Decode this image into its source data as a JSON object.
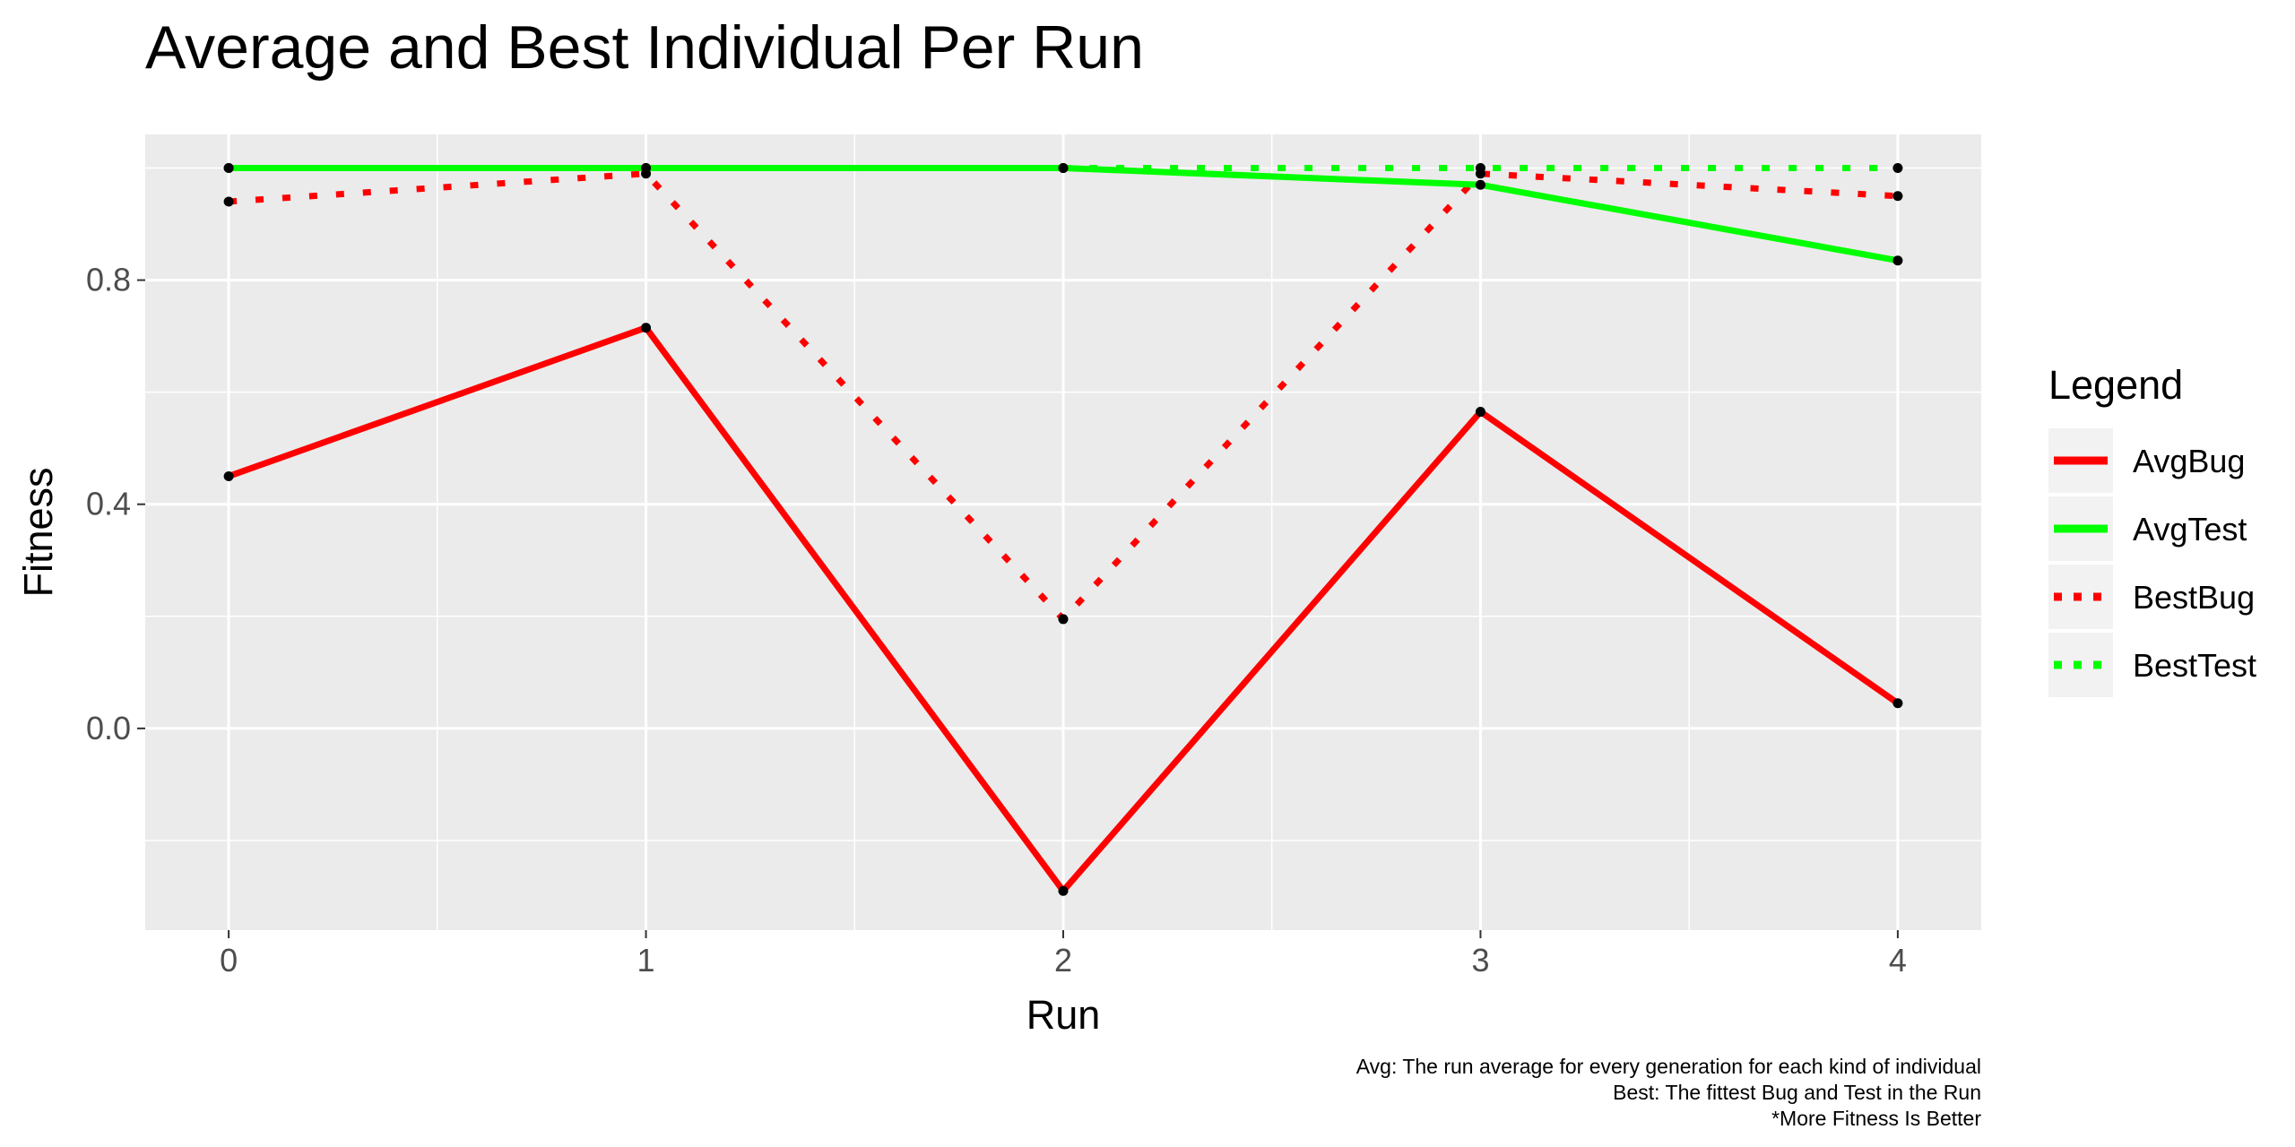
{
  "chart_data": {
    "type": "line",
    "title": "Average and Best Individual Per Run",
    "xlabel": "Run",
    "ylabel": "Fitness",
    "x": [
      0,
      1,
      2,
      3,
      4
    ],
    "x_ticks": [
      "0",
      "1",
      "2",
      "3",
      "4"
    ],
    "y_ticks": [
      "0.0",
      "0.4",
      "0.8"
    ],
    "xlim": [
      -0.2,
      4.2
    ],
    "ylim": [
      -0.36,
      1.06
    ],
    "grid": true,
    "legend_title": "Legend",
    "legend_position": "right",
    "series": [
      {
        "name": "AvgBug",
        "values": [
          0.45,
          0.715,
          -0.29,
          0.565,
          0.045
        ],
        "color": "#ff0000",
        "line_style": "solid"
      },
      {
        "name": "AvgTest",
        "values": [
          1.0,
          1.0,
          1.0,
          0.97,
          0.835
        ],
        "color": "#00ff00",
        "line_style": "solid"
      },
      {
        "name": "BestBug",
        "values": [
          0.94,
          0.99,
          0.195,
          0.99,
          0.95
        ],
        "color": "#ff0000",
        "line_style": "dotted"
      },
      {
        "name": "BestTest",
        "values": [
          1.0,
          1.0,
          1.0,
          1.0,
          1.0
        ],
        "color": "#00ff00",
        "line_style": "dotted"
      }
    ],
    "caption": [
      "Avg: The run average for every generation for each kind of individual",
      "Best: The fittest Bug and Test in the Run",
      "*More Fitness Is Better"
    ]
  }
}
